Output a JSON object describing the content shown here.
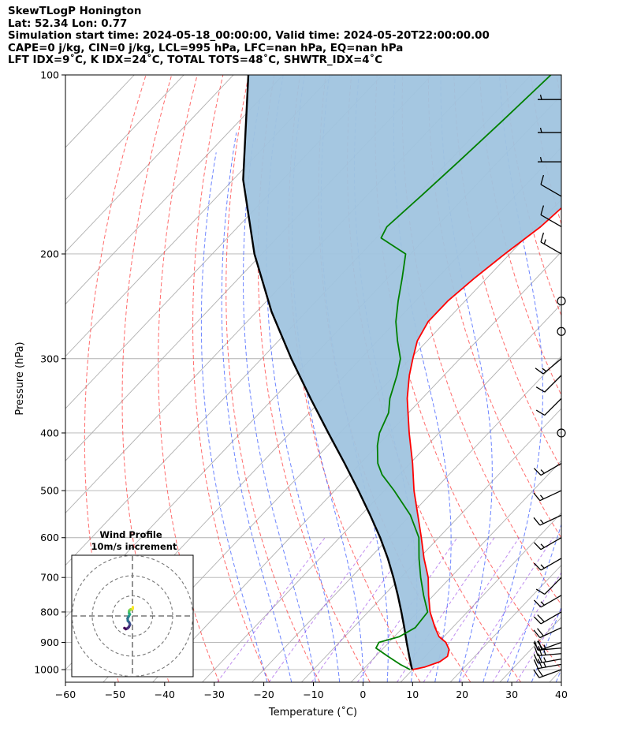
{
  "header": {
    "line1": "SkewTLogP Honington",
    "line2": "Lat: 52.34   Lon: 0.77",
    "line3": "Simulation start time: 2024-05-18_00:00:00, Valid time: 2024-05-20T22:00:00.00",
    "line4": "CAPE=0 j/kg, CIN=0 j/kg, LCL=995 hPa, LFC=nan hPa, EQ=nan hPa",
    "line5": "LFT IDX=9˚C, K IDX=24˚C, TOTAL TOTS=48˚C, SHWTR_IDX=4˚C"
  },
  "chart_data": {
    "type": "skewt",
    "xlabel": "Temperature (˚C)",
    "ylabel": "Pressure (hPa)",
    "xlim": [
      -60,
      40
    ],
    "ylim": [
      1050,
      100
    ],
    "x_ticks": [
      -60,
      -50,
      -40,
      -30,
      -20,
      -10,
      0,
      10,
      20,
      30,
      40
    ],
    "x_tick_labels": [
      "−60",
      "−50",
      "−40",
      "−30",
      "−20",
      "−10",
      "0",
      "10",
      "20",
      "30",
      "40"
    ],
    "p_ticks": [
      1000,
      900,
      800,
      700,
      600,
      500,
      400,
      300,
      200,
      100
    ],
    "p_tick_labels": [
      "1000",
      "900",
      "800",
      "700",
      "600",
      "500",
      "400",
      "300",
      "200",
      "100"
    ],
    "temperature": {
      "name": "Temperature",
      "color": "#ff0000",
      "p": [
        1000,
        990,
        970,
        950,
        925,
        900,
        880,
        850,
        800,
        750,
        700,
        650,
        600,
        550,
        500,
        450,
        400,
        350,
        320,
        300,
        280,
        260,
        240,
        220,
        200,
        180,
        160,
        140,
        120,
        100
      ],
      "t": [
        10,
        12,
        14,
        14.5,
        13.5,
        11.5,
        9,
        6.5,
        2.5,
        -1,
        -4.5,
        -9,
        -13.5,
        -18.5,
        -24,
        -29.5,
        -36,
        -43,
        -47,
        -49.5,
        -52,
        -53.5,
        -53.5,
        -52.5,
        -51,
        -49,
        -48,
        -46,
        -44,
        -42.5
      ]
    },
    "dewpoint": {
      "name": "Dewpoint",
      "color": "#008000",
      "p": [
        1000,
        980,
        950,
        920,
        900,
        880,
        850,
        800,
        750,
        700,
        650,
        600,
        550,
        500,
        470,
        450,
        420,
        400,
        370,
        350,
        320,
        300,
        280,
        260,
        240,
        220,
        200,
        188,
        180,
        160,
        140,
        120,
        100
      ],
      "t": [
        9.5,
        6.5,
        2.5,
        -1.5,
        -2,
        1,
        2.5,
        2,
        -2,
        -6,
        -10,
        -14,
        -20,
        -28,
        -33.5,
        -36.5,
        -40,
        -42,
        -44,
        -46.5,
        -49.5,
        -52,
        -56,
        -60,
        -63.5,
        -67,
        -71,
        -79,
        -80,
        -79,
        -78,
        -77,
        -76
      ]
    },
    "parcel": {
      "name": "Parcel profile",
      "color": "#000000",
      "p": [
        1000,
        995,
        950,
        900,
        850,
        800,
        750,
        700,
        650,
        600,
        550,
        500,
        450,
        400,
        350,
        300,
        250,
        200,
        150,
        100
      ],
      "t": [
        10,
        9.6,
        6.8,
        3.6,
        0.3,
        -3.3,
        -7.2,
        -11.5,
        -16.3,
        -21.8,
        -28.1,
        -35.2,
        -43.2,
        -52.3,
        -62.5,
        -74,
        -87,
        -101.5,
        -118,
        -137
      ]
    },
    "cape_cin_shading": "#a0c4df",
    "wind_barbs": {
      "p": [
        1000,
        980,
        960,
        940,
        920,
        900,
        850,
        800,
        750,
        700,
        650,
        600,
        550,
        500,
        450,
        400,
        350,
        320,
        300,
        270,
        240,
        200,
        180,
        160,
        140,
        125,
        110
      ],
      "speed_kt": [
        20,
        25,
        25,
        25,
        25,
        20,
        20,
        20,
        15,
        10,
        15,
        15,
        15,
        15,
        15,
        0,
        10,
        10,
        15,
        0,
        0,
        15,
        10,
        10,
        5,
        5,
        5
      ],
      "direction_deg": [
        250,
        260,
        260,
        265,
        265,
        250,
        245,
        240,
        240,
        225,
        240,
        240,
        245,
        245,
        240,
        0,
        225,
        225,
        230,
        0,
        0,
        300,
        300,
        300,
        270,
        270,
        270
      ]
    },
    "hodograph": {
      "title": "Wind Profile",
      "subtitle": "10m/s increment",
      "rings_ms": [
        10,
        20,
        30
      ],
      "colormap": "viridis",
      "u": [
        -4,
        -3.3,
        -2.5,
        -1.8,
        -1.2,
        -1.6,
        -2.3,
        -2.4,
        -1.8,
        -1.3,
        -1.7,
        -1.7,
        -1.5,
        -0.9,
        -0.4,
        0.1,
        0.2
      ],
      "v": [
        -6,
        -6.5,
        -6.2,
        -5.5,
        -4.2,
        -3.2,
        -2.4,
        -1.2,
        -0.1,
        0.8,
        1.5,
        2.2,
        2.8,
        3.3,
        3.2,
        3.6,
        4.4
      ]
    }
  }
}
